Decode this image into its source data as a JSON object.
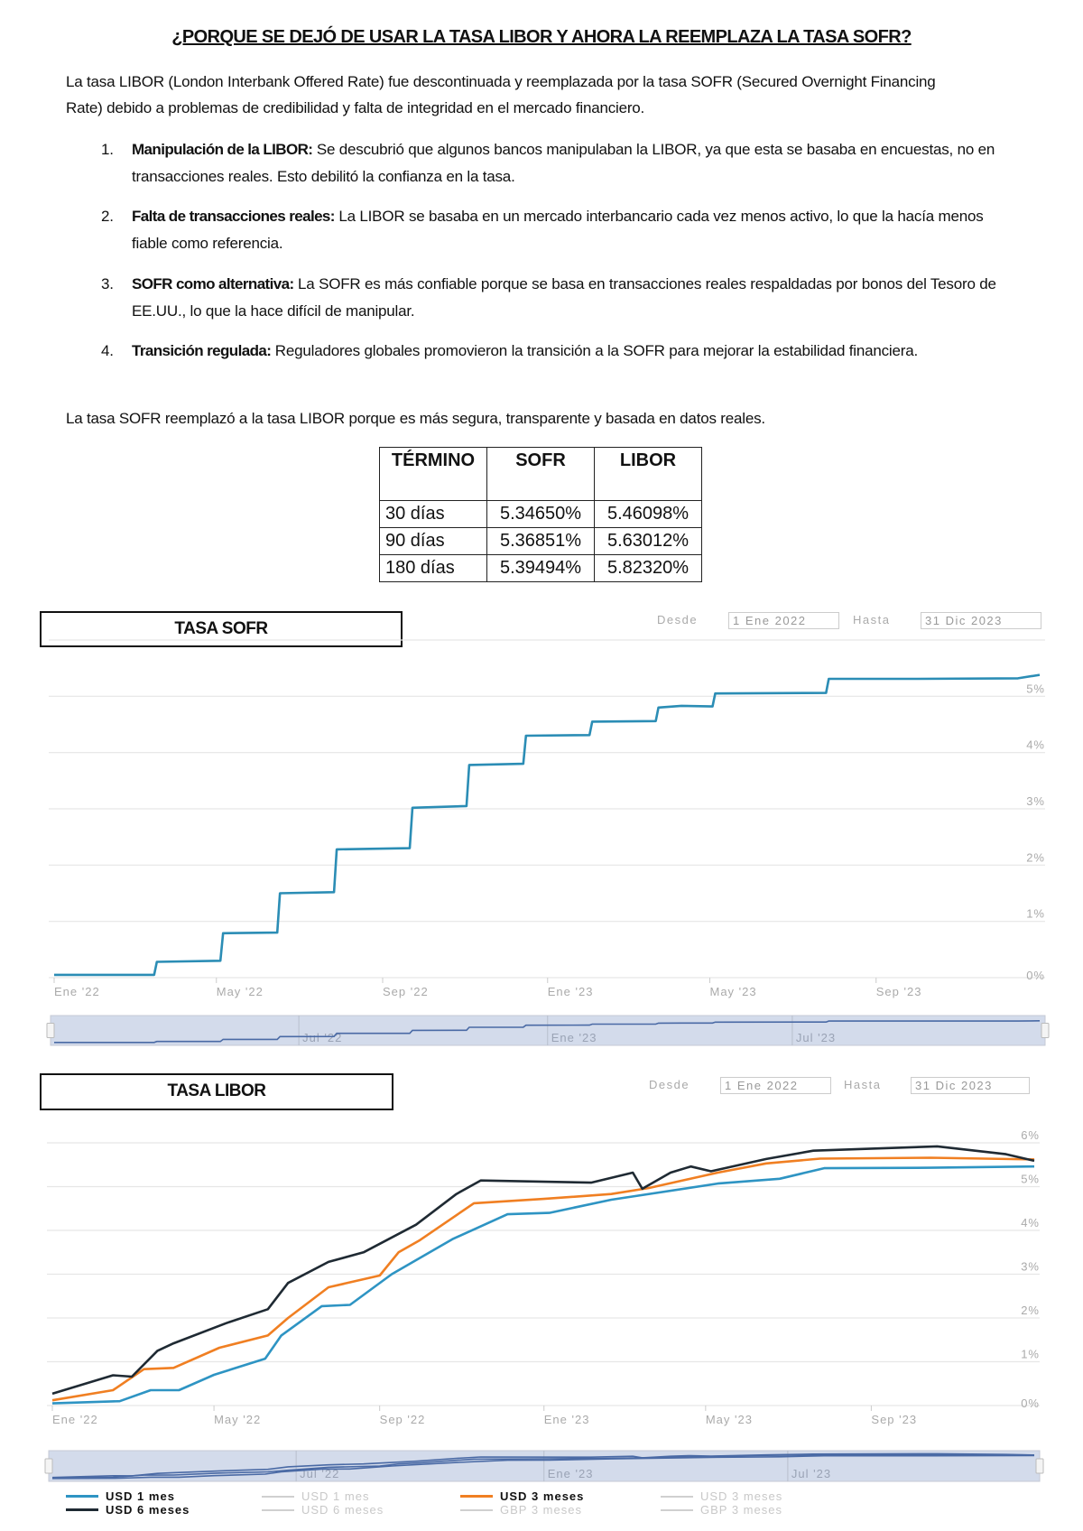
{
  "document": {
    "title": "¿PORQUE SE DEJÓ DE USAR LA TASA LIBOR Y AHORA LA REEMPLAZA LA TASA SOFR?",
    "intro": "La tasa LIBOR (London Interbank Offered Rate) fue descontinuada y reemplazada por la tasa SOFR (Secured Overnight Financing Rate) debido a problemas de credibilidad y falta de integridad en el mercado financiero.",
    "items": [
      {
        "num": "1.",
        "label": "Manipulación de la LIBOR:",
        "text": " Se descubrió que algunos bancos manipulaban la LIBOR, ya que esta se basaba en encuestas, no en transacciones reales. Esto debilitó la confianza en la tasa."
      },
      {
        "num": "2.",
        "label": "Falta de transacciones reales:",
        "text": " La LIBOR se basaba en un mercado interbancario cada vez menos activo, lo que la hacía menos fiable como referencia."
      },
      {
        "num": "3.",
        "label": "SOFR como alternativa:",
        "text": " La SOFR es más confiable porque se basa en transacciones reales respaldadas por bonos del Tesoro de EE.UU., lo que la hace difícil de manipular."
      },
      {
        "num": "4.",
        "label": "Transición regulada:",
        "text": " Reguladores globales promovieron la transición a la SOFR para mejorar la estabilidad financiera."
      }
    ],
    "outro": "La tasa SOFR reemplazó a la tasa LIBOR porque es más segura, transparente y basada en datos reales."
  },
  "table": {
    "headers": [
      "TÉRMINO",
      "SOFR",
      "LIBOR"
    ],
    "rows": [
      [
        "30 días",
        "5.34650%",
        "5.46098%"
      ],
      [
        "90 días",
        "5.36851%",
        "5.63012%"
      ],
      [
        "180 días",
        "5.39494%",
        "5.82320%"
      ]
    ]
  },
  "chart_data": [
    {
      "type": "line",
      "title": "TASA SOFR",
      "range": {
        "from_label": "Desde",
        "from": "1 Ene 2022",
        "to_label": "Hasta",
        "to": "31 Dic 2023"
      },
      "xlim": [
        "2022-01-01",
        "2023-12-31"
      ],
      "ylim": [
        0,
        6
      ],
      "ytick_labels": [
        "0%",
        "1%",
        "2%",
        "3%",
        "4%",
        "5%"
      ],
      "xtick_labels": [
        "Ene '22",
        "May '22",
        "Sep '22",
        "Ene '23",
        "May '23",
        "Sep '23"
      ],
      "navigator_labels": [
        "Jul '22",
        "Ene '23",
        "Jul '23"
      ],
      "grid": true,
      "series": [
        {
          "color": "#2b8db5",
          "points": [
            [
              "2022-01-01",
              0.05
            ],
            [
              "2022-03-16",
              0.05
            ],
            [
              "2022-03-18",
              0.28
            ],
            [
              "2022-05-04",
              0.3
            ],
            [
              "2022-05-06",
              0.79
            ],
            [
              "2022-06-15",
              0.8
            ],
            [
              "2022-06-17",
              1.5
            ],
            [
              "2022-07-27",
              1.52
            ],
            [
              "2022-07-29",
              2.28
            ],
            [
              "2022-09-21",
              2.3
            ],
            [
              "2022-09-23",
              3.02
            ],
            [
              "2022-11-02",
              3.05
            ],
            [
              "2022-11-04",
              3.78
            ],
            [
              "2022-12-14",
              3.8
            ],
            [
              "2022-12-16",
              4.3
            ],
            [
              "2023-02-01",
              4.31
            ],
            [
              "2023-02-03",
              4.55
            ],
            [
              "2023-03-22",
              4.56
            ],
            [
              "2023-03-24",
              4.8
            ],
            [
              "2023-04-10",
              4.83
            ],
            [
              "2023-05-03",
              4.82
            ],
            [
              "2023-05-05",
              5.05
            ],
            [
              "2023-07-26",
              5.06
            ],
            [
              "2023-07-28",
              5.31
            ],
            [
              "2023-10-01",
              5.31
            ],
            [
              "2023-12-15",
              5.32
            ],
            [
              "2023-12-31",
              5.38
            ]
          ]
        }
      ]
    },
    {
      "type": "line",
      "title": "TASA LIBOR",
      "range": {
        "from_label": "Desde",
        "from": "1 Ene 2022",
        "to_label": "Hasta",
        "to": "31 Dic 2023"
      },
      "xlim": [
        "2022-01-01",
        "2023-12-31"
      ],
      "ylim": [
        0,
        6
      ],
      "ytick_labels": [
        "0%",
        "1%",
        "2%",
        "3%",
        "4%",
        "5%",
        "6%"
      ],
      "xtick_labels": [
        "Ene '22",
        "May '22",
        "Sep '22",
        "Ene '23",
        "May '23",
        "Sep '23"
      ],
      "navigator_labels": [
        "Jul '22",
        "Ene '23",
        "Jul '23"
      ],
      "grid": true,
      "legend_position": "bottom",
      "legend": [
        {
          "label": "USD 1 mes",
          "color": "#2e94c3",
          "active": true
        },
        {
          "label": "USD 1 mes",
          "color": "#d0d0d0",
          "active": false
        },
        {
          "label": "USD 3 meses",
          "color": "#f07f22",
          "active": true
        },
        {
          "label": "USD 3 meses",
          "color": "#d0d0d0",
          "active": false
        },
        {
          "label": "USD 6 meses",
          "color": "#1f2a33",
          "active": true
        },
        {
          "label": "USD 6 meses",
          "color": "#d0d0d0",
          "active": false
        },
        {
          "label": "GBP 3 meses",
          "color": "#d0d0d0",
          "active": false
        },
        {
          "label": "GBP 3 meses",
          "color": "#d0d0d0",
          "active": false
        }
      ],
      "series": [
        {
          "name": "USD 1 mes",
          "color": "#2e94c3",
          "points": [
            [
              "2022-01-01",
              0.05
            ],
            [
              "2022-02-20",
              0.1
            ],
            [
              "2022-03-15",
              0.35
            ],
            [
              "2022-04-05",
              0.35
            ],
            [
              "2022-05-01",
              0.7
            ],
            [
              "2022-06-08",
              1.07
            ],
            [
              "2022-06-20",
              1.6
            ],
            [
              "2022-07-20",
              2.27
            ],
            [
              "2022-08-10",
              2.3
            ],
            [
              "2022-09-10",
              3.0
            ],
            [
              "2022-10-25",
              3.8
            ],
            [
              "2022-12-05",
              4.37
            ],
            [
              "2023-01-05",
              4.4
            ],
            [
              "2023-02-20",
              4.7
            ],
            [
              "2023-05-10",
              5.07
            ],
            [
              "2023-06-25",
              5.18
            ],
            [
              "2023-07-28",
              5.42
            ],
            [
              "2023-10-15",
              5.43
            ],
            [
              "2023-12-31",
              5.46
            ]
          ]
        },
        {
          "name": "USD 3 meses",
          "color": "#f07f22",
          "points": [
            [
              "2022-01-01",
              0.12
            ],
            [
              "2022-02-15",
              0.35
            ],
            [
              "2022-03-10",
              0.83
            ],
            [
              "2022-04-01",
              0.86
            ],
            [
              "2022-05-05",
              1.32
            ],
            [
              "2022-06-10",
              1.6
            ],
            [
              "2022-06-25",
              2.0
            ],
            [
              "2022-07-25",
              2.7
            ],
            [
              "2022-09-01",
              2.97
            ],
            [
              "2022-09-15",
              3.5
            ],
            [
              "2022-10-01",
              3.78
            ],
            [
              "2022-11-10",
              4.62
            ],
            [
              "2023-01-01",
              4.72
            ],
            [
              "2023-02-20",
              4.83
            ],
            [
              "2023-03-20",
              4.97
            ],
            [
              "2023-05-10",
              5.32
            ],
            [
              "2023-06-15",
              5.53
            ],
            [
              "2023-07-25",
              5.64
            ],
            [
              "2023-10-15",
              5.66
            ],
            [
              "2023-12-31",
              5.62
            ]
          ]
        },
        {
          "name": "USD 6 meses",
          "color": "#1f2a33",
          "points": [
            [
              "2022-01-01",
              0.27
            ],
            [
              "2022-02-15",
              0.69
            ],
            [
              "2022-03-01",
              0.66
            ],
            [
              "2022-03-20",
              1.25
            ],
            [
              "2022-04-01",
              1.42
            ],
            [
              "2022-05-10",
              1.88
            ],
            [
              "2022-06-10",
              2.2
            ],
            [
              "2022-06-25",
              2.8
            ],
            [
              "2022-07-25",
              3.28
            ],
            [
              "2022-08-20",
              3.5
            ],
            [
              "2022-09-28",
              4.13
            ],
            [
              "2022-10-28",
              4.83
            ],
            [
              "2022-11-15",
              5.14
            ],
            [
              "2023-02-05",
              5.09
            ],
            [
              "2023-03-08",
              5.32
            ],
            [
              "2023-03-15",
              4.95
            ],
            [
              "2023-04-05",
              5.32
            ],
            [
              "2023-04-20",
              5.46
            ],
            [
              "2023-05-05",
              5.35
            ],
            [
              "2023-06-15",
              5.63
            ],
            [
              "2023-07-20",
              5.82
            ],
            [
              "2023-10-20",
              5.92
            ],
            [
              "2023-12-10",
              5.74
            ],
            [
              "2023-12-31",
              5.59
            ]
          ]
        }
      ]
    }
  ]
}
